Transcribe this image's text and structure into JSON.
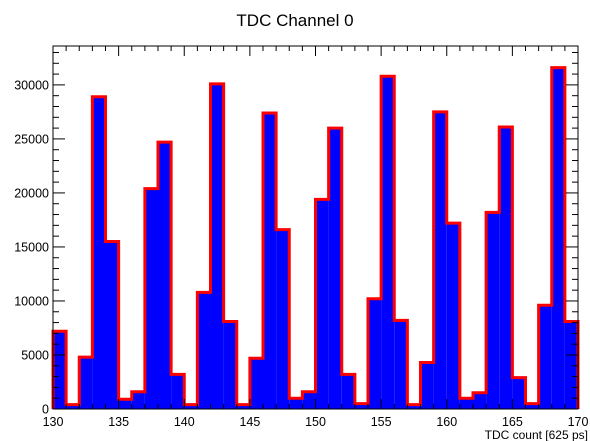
{
  "chart_data": {
    "type": "bar",
    "title": "TDC Channel 0",
    "xlabel": "TDC count [625 ps]",
    "ylabel": "",
    "xlim": [
      130,
      170
    ],
    "ylim": [
      0,
      33600
    ],
    "x_ticks": [
      130,
      135,
      140,
      145,
      150,
      155,
      160,
      165,
      170
    ],
    "y_ticks": [
      0,
      5000,
      10000,
      15000,
      20000,
      25000,
      30000
    ],
    "bin_width": 1,
    "bins": [
      {
        "x": 130,
        "value": 7200
      },
      {
        "x": 131,
        "value": 400
      },
      {
        "x": 132,
        "value": 4800
      },
      {
        "x": 133,
        "value": 28900
      },
      {
        "x": 134,
        "value": 15500
      },
      {
        "x": 135,
        "value": 900
      },
      {
        "x": 136,
        "value": 1600
      },
      {
        "x": 137,
        "value": 20400
      },
      {
        "x": 138,
        "value": 24700
      },
      {
        "x": 139,
        "value": 3200
      },
      {
        "x": 140,
        "value": 400
      },
      {
        "x": 141,
        "value": 10800
      },
      {
        "x": 142,
        "value": 30100
      },
      {
        "x": 143,
        "value": 8100
      },
      {
        "x": 144,
        "value": 400
      },
      {
        "x": 145,
        "value": 4700
      },
      {
        "x": 146,
        "value": 27400
      },
      {
        "x": 147,
        "value": 16600
      },
      {
        "x": 148,
        "value": 1000
      },
      {
        "x": 149,
        "value": 1600
      },
      {
        "x": 150,
        "value": 19400
      },
      {
        "x": 151,
        "value": 26000
      },
      {
        "x": 152,
        "value": 3200
      },
      {
        "x": 153,
        "value": 500
      },
      {
        "x": 154,
        "value": 10200
      },
      {
        "x": 155,
        "value": 30800
      },
      {
        "x": 156,
        "value": 8200
      },
      {
        "x": 157,
        "value": 400
      },
      {
        "x": 158,
        "value": 4300
      },
      {
        "x": 159,
        "value": 27500
      },
      {
        "x": 160,
        "value": 17200
      },
      {
        "x": 161,
        "value": 1000
      },
      {
        "x": 162,
        "value": 1500
      },
      {
        "x": 163,
        "value": 18200
      },
      {
        "x": 164,
        "value": 26100
      },
      {
        "x": 165,
        "value": 2900
      },
      {
        "x": 166,
        "value": 500
      },
      {
        "x": 167,
        "value": 9600
      },
      {
        "x": 168,
        "value": 31600
      },
      {
        "x": 169,
        "value": 8100
      }
    ],
    "fill_color": "#0000ff",
    "line_color": "#ff0000",
    "grid": false,
    "legend": "none"
  }
}
